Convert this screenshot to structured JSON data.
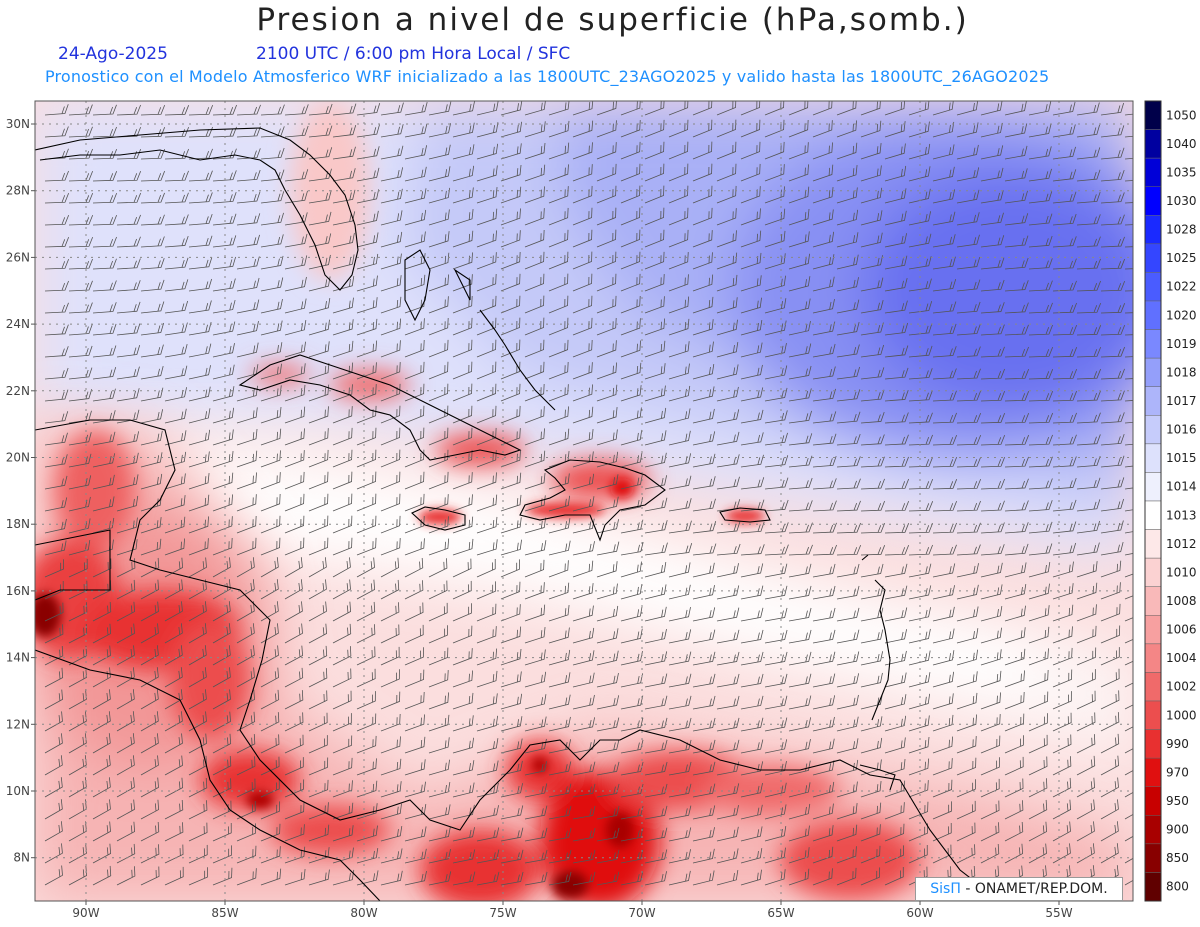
{
  "header": {
    "title": "Presion a nivel de superficie (hPa,somb.)",
    "date": "24-Ago-2025",
    "valid_time": "2100 UTC / 6:00 pm Hora Local / SFC",
    "forecast_note": "Pronostico con el Modelo Atmosferico WRF inicializado a las 1800UTC_23AGO2025 y valido hasta las  1800UTC_26AGO2025"
  },
  "map": {
    "lat_labels": [
      "30N",
      "28N",
      "26N",
      "24N",
      "22N",
      "20N",
      "18N",
      "16N",
      "14N",
      "12N",
      "10N",
      "8N"
    ],
    "lon_labels": [
      "90W",
      "85W",
      "80W",
      "75W",
      "70W",
      "65W",
      "60W",
      "55W"
    ],
    "colors": {
      "high_pressure": "#6870f0",
      "low_pressure": "#e00010",
      "coastline": "#000000",
      "wind_barbs": "#555555"
    }
  },
  "colorbar": {
    "levels": [
      "1050",
      "1040",
      "1035",
      "1030",
      "1028",
      "1025",
      "1022",
      "1020",
      "1019",
      "1018",
      "1017",
      "1016",
      "1015",
      "1014",
      "1013",
      "1012",
      "1010",
      "1008",
      "1006",
      "1004",
      "1002",
      "1000",
      "990",
      "970",
      "950",
      "900",
      "850",
      "800"
    ],
    "colors": [
      "#00004a",
      "#0000a0",
      "#0000d8",
      "#0000ff",
      "#1a2aff",
      "#3446ff",
      "#4a5cff",
      "#6070ff",
      "#7a88ff",
      "#949ffa",
      "#adb5fa",
      "#c6ccfb",
      "#dde1fc",
      "#eef0fd",
      "#ffffff",
      "#fde8e8",
      "#fbd2d2",
      "#f9b9b9",
      "#f7a0a0",
      "#f48686",
      "#f06a6a",
      "#ec4e4e",
      "#e83030",
      "#e01010",
      "#c80000",
      "#a80000",
      "#880000",
      "#600000"
    ]
  },
  "credit": {
    "logo": "SisΠ",
    "text": " - ONAMET/REP.DOM."
  }
}
